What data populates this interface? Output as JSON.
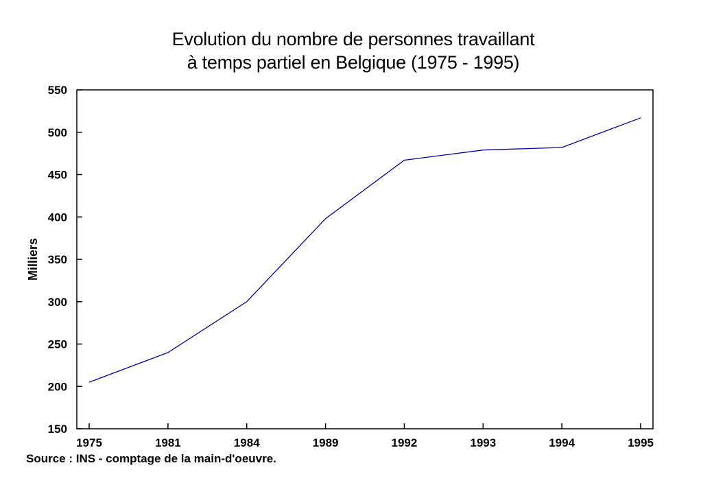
{
  "chart_data": {
    "type": "line",
    "title_line1": "Evolution du nombre de personnes travaillant",
    "title_line2": "à temps partiel en Belgique (1975 - 1995)",
    "ylabel": "Milliers",
    "xlabel": "",
    "categories": [
      "1975",
      "1981",
      "1984",
      "1989",
      "1992",
      "1993",
      "1994",
      "1995"
    ],
    "series": [
      {
        "values": [
          205,
          240,
          300,
          398,
          467,
          479,
          482,
          517
        ],
        "color": "#0000aa"
      }
    ],
    "ylim": [
      150,
      550
    ],
    "yticks": [
      150,
      200,
      250,
      300,
      350,
      400,
      450,
      500,
      550
    ],
    "grid": false,
    "source": "Source : INS - comptage de la main-d'oeuvre."
  }
}
